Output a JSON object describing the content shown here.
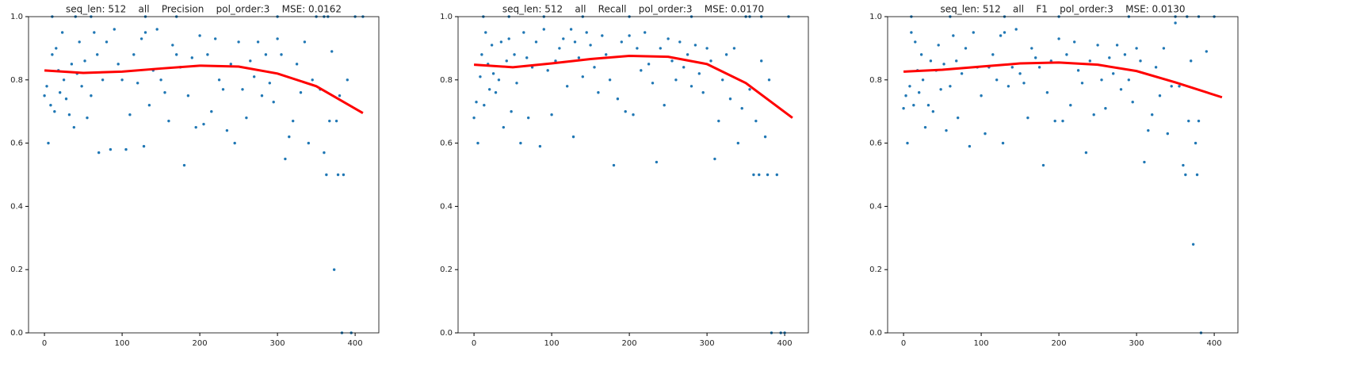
{
  "chart_data": [
    {
      "type": "scatter",
      "title": "seq_len: 512    all    Precision    pol_order:3    MSE: 0.0162",
      "xlim": [
        -20.5,
        430.5
      ],
      "ylim": [
        0,
        1
      ],
      "xticks": [
        0,
        100,
        200,
        300,
        400
      ],
      "yticks": [
        {
          "value": 0,
          "label": "0.0"
        },
        0.2,
        0.4,
        0.6,
        0.8,
        {
          "value": 1,
          "label": "1.0"
        }
      ],
      "series": [
        {
          "color": "#1f77b4",
          "mark": "dot",
          "x": [
            0,
            3,
            5,
            8,
            10,
            13,
            15,
            18,
            20,
            23,
            25,
            28,
            32,
            35,
            38,
            42,
            45,
            48,
            52,
            55,
            60,
            64,
            68,
            70,
            75,
            80,
            85,
            90,
            95,
            100,
            105,
            110,
            115,
            120,
            125,
            128,
            130,
            135,
            140,
            145,
            150,
            155,
            160,
            165,
            170,
            175,
            180,
            185,
            190,
            195,
            200,
            205,
            210,
            215,
            220,
            225,
            230,
            235,
            240,
            245,
            250,
            255,
            260,
            265,
            270,
            275,
            280,
            285,
            290,
            295,
            300,
            305,
            310,
            315,
            320,
            325,
            330,
            335,
            340,
            345,
            350,
            355,
            360,
            363,
            367,
            370,
            373,
            376,
            378,
            380,
            383,
            385,
            390,
            395,
            10,
            40,
            60,
            130,
            170,
            300,
            360,
            365,
            400,
            410
          ],
          "values": [
            0.75,
            0.78,
            0.6,
            0.72,
            0.88,
            0.7,
            0.9,
            0.83,
            0.76,
            0.95,
            0.8,
            0.74,
            0.69,
            0.85,
            0.65,
            0.82,
            0.92,
            0.78,
            0.86,
            0.68,
            0.75,
            0.95,
            0.88,
            0.57,
            0.8,
            0.92,
            0.58,
            0.96,
            0.85,
            0.8,
            0.58,
            0.69,
            0.88,
            0.79,
            0.93,
            0.59,
            0.95,
            0.72,
            0.83,
            0.96,
            0.8,
            0.76,
            0.67,
            0.91,
            0.88,
            0.84,
            0.53,
            0.75,
            0.87,
            0.65,
            0.94,
            0.66,
            0.88,
            0.7,
            0.93,
            0.8,
            0.77,
            0.64,
            0.85,
            0.6,
            0.92,
            0.77,
            0.68,
            0.86,
            0.81,
            0.92,
            0.75,
            0.88,
            0.79,
            0.73,
            0.93,
            0.88,
            0.55,
            0.62,
            0.67,
            0.85,
            0.76,
            0.92,
            0.6,
            0.8,
            1,
            0.77,
            0.57,
            0.5,
            0.67,
            0.89,
            0.2,
            0.67,
            0.5,
            0.75,
            0,
            0.5,
            0.8,
            0,
            1,
            1,
            1,
            1,
            1,
            1,
            1,
            1,
            1,
            1
          ]
        },
        {
          "color": "#ff0000",
          "mark": "line",
          "x": [
            0,
            50,
            100,
            150,
            200,
            250,
            300,
            350,
            410
          ],
          "values": [
            0.83,
            0.822,
            0.826,
            0.836,
            0.845,
            0.842,
            0.82,
            0.78,
            0.695
          ]
        }
      ]
    },
    {
      "type": "scatter",
      "title": "seq_len: 512    all    Recall    pol_order:3    MSE: 0.0170",
      "xlim": [
        -20.5,
        430.5
      ],
      "ylim": [
        0,
        1
      ],
      "xticks": [
        0,
        100,
        200,
        300,
        400
      ],
      "yticks": [
        {
          "value": 0,
          "label": "0.0"
        },
        0.2,
        0.4,
        0.6,
        0.8,
        {
          "value": 1,
          "label": "1.0"
        }
      ],
      "series": [
        {
          "color": "#1f77b4",
          "mark": "dot",
          "x": [
            0,
            3,
            5,
            8,
            10,
            13,
            15,
            18,
            20,
            23,
            25,
            28,
            32,
            35,
            38,
            42,
            45,
            48,
            52,
            55,
            60,
            64,
            68,
            70,
            75,
            80,
            85,
            90,
            95,
            100,
            105,
            110,
            115,
            120,
            125,
            128,
            130,
            135,
            140,
            145,
            150,
            155,
            160,
            165,
            170,
            175,
            180,
            185,
            190,
            195,
            200,
            205,
            210,
            215,
            220,
            225,
            230,
            235,
            240,
            245,
            250,
            255,
            260,
            265,
            270,
            275,
            280,
            285,
            290,
            295,
            300,
            305,
            310,
            315,
            320,
            325,
            330,
            335,
            340,
            345,
            350,
            355,
            360,
            363,
            367,
            370,
            375,
            378,
            380,
            383,
            390,
            395,
            400,
            12,
            45,
            90,
            140,
            200,
            280,
            355,
            370,
            405
          ],
          "values": [
            0.68,
            0.73,
            0.6,
            0.81,
            0.88,
            0.72,
            0.95,
            0.85,
            0.77,
            0.91,
            0.82,
            0.76,
            0.8,
            0.92,
            0.65,
            0.86,
            0.93,
            0.7,
            0.88,
            0.79,
            0.6,
            0.95,
            0.87,
            0.68,
            0.84,
            0.92,
            0.59,
            0.96,
            0.83,
            0.69,
            0.86,
            0.9,
            0.93,
            0.78,
            0.96,
            0.62,
            0.92,
            0.87,
            0.81,
            0.95,
            0.91,
            0.84,
            0.76,
            0.94,
            0.88,
            0.8,
            0.53,
            0.74,
            0.92,
            0.7,
            0.94,
            0.69,
            0.9,
            0.83,
            0.95,
            0.85,
            0.79,
            0.54,
            0.9,
            0.72,
            0.93,
            0.86,
            0.8,
            0.92,
            0.84,
            0.88,
            0.78,
            0.91,
            0.82,
            0.76,
            0.9,
            0.86,
            0.55,
            0.67,
            0.8,
            0.88,
            0.74,
            0.9,
            0.6,
            0.71,
            1,
            0.77,
            0.5,
            0.67,
            0.5,
            0.86,
            0.62,
            0.5,
            0.8,
            0,
            0.5,
            0,
            0,
            1,
            1,
            1,
            1,
            1,
            1,
            1,
            1,
            1
          ]
        },
        {
          "color": "#ff0000",
          "mark": "line",
          "x": [
            0,
            50,
            100,
            150,
            200,
            250,
            300,
            350,
            410
          ],
          "values": [
            0.848,
            0.84,
            0.852,
            0.866,
            0.876,
            0.873,
            0.85,
            0.79,
            0.68
          ]
        }
      ]
    },
    {
      "type": "scatter",
      "title": "seq_len: 512    all    F1    pol_order:3    MSE: 0.0130",
      "xlim": [
        -20.5,
        430.5
      ],
      "ylim": [
        0,
        1
      ],
      "xticks": [
        0,
        100,
        200,
        300,
        400
      ],
      "yticks": [
        {
          "value": 0,
          "label": "0.0"
        },
        0.2,
        0.4,
        0.6,
        0.8,
        {
          "value": 1,
          "label": "1.0"
        }
      ],
      "series": [
        {
          "color": "#1f77b4",
          "mark": "dot",
          "x": [
            0,
            3,
            5,
            8,
            10,
            13,
            15,
            18,
            20,
            23,
            25,
            28,
            32,
            35,
            38,
            42,
            45,
            48,
            52,
            55,
            60,
            64,
            68,
            70,
            75,
            80,
            85,
            90,
            95,
            100,
            105,
            110,
            115,
            120,
            125,
            128,
            130,
            135,
            140,
            145,
            150,
            155,
            160,
            165,
            170,
            175,
            180,
            185,
            190,
            195,
            200,
            205,
            210,
            215,
            220,
            225,
            230,
            235,
            240,
            245,
            250,
            255,
            260,
            265,
            270,
            275,
            280,
            285,
            290,
            295,
            300,
            305,
            310,
            315,
            320,
            325,
            330,
            335,
            340,
            345,
            350,
            355,
            360,
            363,
            367,
            370,
            373,
            376,
            378,
            380,
            383,
            390,
            10,
            60,
            130,
            200,
            290,
            350,
            365,
            380,
            400
          ],
          "values": [
            0.71,
            0.75,
            0.6,
            0.78,
            0.95,
            0.72,
            0.92,
            0.83,
            0.76,
            0.88,
            0.8,
            0.65,
            0.72,
            0.86,
            0.7,
            0.83,
            0.91,
            0.77,
            0.85,
            0.64,
            0.78,
            0.94,
            0.86,
            0.68,
            0.82,
            0.9,
            0.59,
            0.95,
            0.84,
            0.75,
            0.63,
            0.84,
            0.88,
            0.8,
            0.94,
            0.6,
            0.95,
            0.78,
            0.84,
            0.96,
            0.82,
            0.79,
            0.68,
            0.9,
            0.87,
            0.84,
            0.53,
            0.76,
            0.86,
            0.67,
            0.93,
            0.67,
            0.88,
            0.72,
            0.92,
            0.83,
            0.79,
            0.57,
            0.86,
            0.69,
            0.91,
            0.8,
            0.71,
            0.87,
            0.82,
            0.91,
            0.77,
            0.88,
            0.8,
            0.73,
            0.9,
            0.86,
            0.54,
            0.64,
            0.69,
            0.84,
            0.75,
            0.9,
            0.63,
            0.78,
            0.98,
            0.78,
            0.53,
            0.5,
            0.67,
            0.86,
            0.28,
            0.6,
            0.5,
            0.67,
            0,
            0.89,
            1,
            1,
            1,
            1,
            1,
            1,
            1,
            1,
            1
          ]
        },
        {
          "color": "#ff0000",
          "mark": "line",
          "x": [
            0,
            50,
            100,
            150,
            200,
            250,
            300,
            350,
            410
          ],
          "values": [
            0.826,
            0.832,
            0.842,
            0.852,
            0.855,
            0.848,
            0.828,
            0.792,
            0.745
          ]
        }
      ]
    }
  ]
}
